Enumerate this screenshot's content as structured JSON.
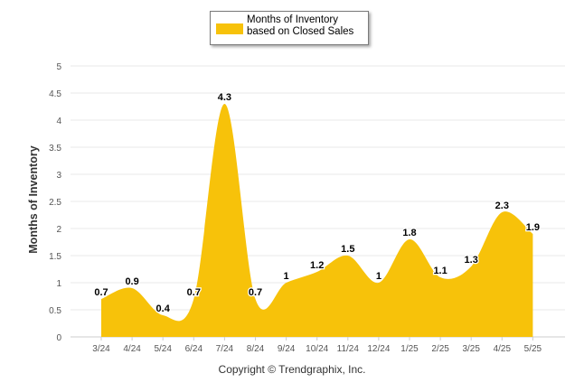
{
  "chart_data": {
    "type": "area",
    "categories": [
      "3/24",
      "4/24",
      "5/24",
      "6/24",
      "7/24",
      "8/24",
      "9/24",
      "10/24",
      "11/24",
      "12/24",
      "1/25",
      "2/25",
      "3/25",
      "4/25",
      "5/25"
    ],
    "series": [
      {
        "name": "Months of Inventory based on Closed Sales",
        "values": [
          0.7,
          0.9,
          0.4,
          0.7,
          4.3,
          0.7,
          1,
          1.2,
          1.5,
          1,
          1.8,
          1.1,
          1.3,
          2.3,
          1.9
        ]
      }
    ],
    "data_labels": [
      "0.7",
      "0.9",
      "0.4",
      "0.7",
      "4.3",
      "0.7",
      "1",
      "1.2",
      "1.5",
      "1",
      "1.8",
      "1.1",
      "1.3",
      "2.3",
      "1.9"
    ],
    "yticks": [
      "0",
      "0.5",
      "1",
      "1.5",
      "2",
      "2.5",
      "3",
      "3.5",
      "4",
      "4.5",
      "5"
    ],
    "ylim": [
      0,
      5
    ],
    "ylabel": "Months of Inventory",
    "xlabel": "",
    "grid": true,
    "legend_position": "top-center",
    "colors": {
      "fill": "#f7c20a",
      "grid": "#e8e8e8",
      "text": "#333333"
    }
  },
  "legend": {
    "label": "Months of Inventory based on Closed Sales"
  },
  "footer": {
    "copyright": "Copyright © Trendgraphix, Inc."
  }
}
